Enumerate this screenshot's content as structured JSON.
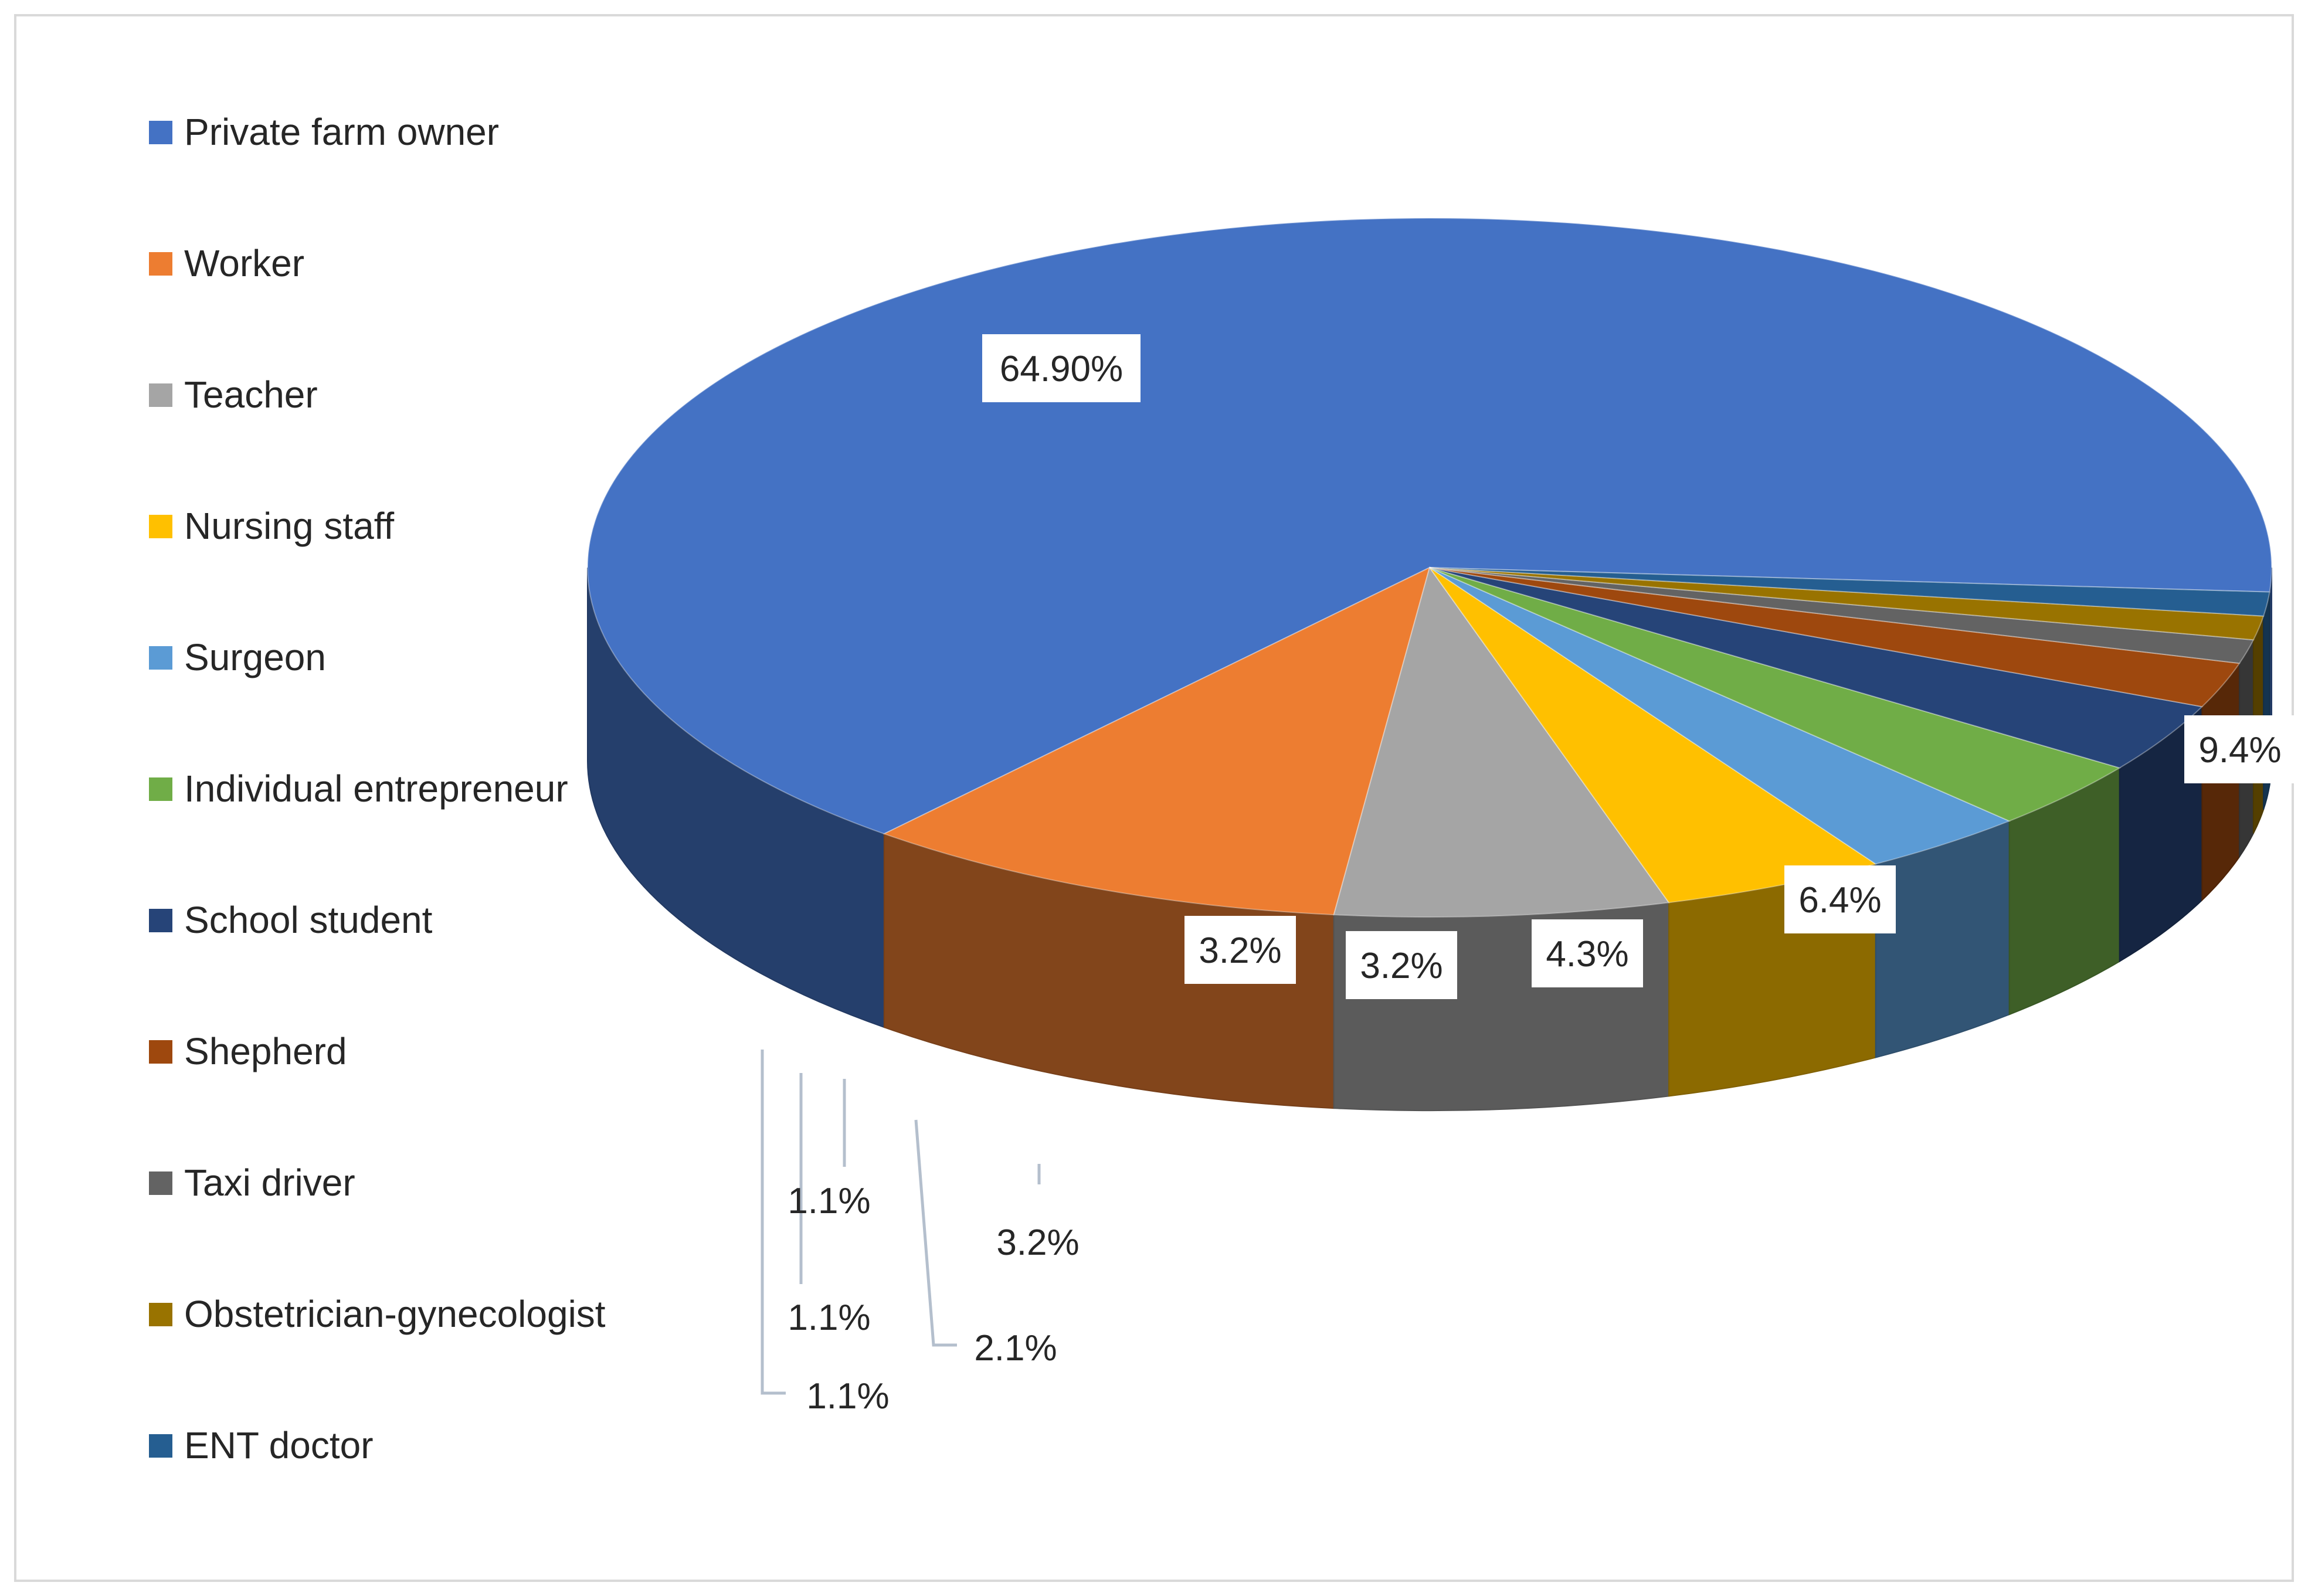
{
  "chart_data": {
    "type": "pie",
    "three_d": true,
    "legend_position": "left",
    "slices": [
      {
        "name": "Private farm owner",
        "label": "64.90%",
        "value": 64.9,
        "color": "#4472C4"
      },
      {
        "name": "Worker",
        "label": "9.4%",
        "value": 9.4,
        "color": "#ED7D31"
      },
      {
        "name": "Teacher",
        "label": "6.4%",
        "value": 6.4,
        "color": "#A5A5A5"
      },
      {
        "name": "Nursing staff",
        "label": "4.3%",
        "value": 4.3,
        "color": "#FFC000"
      },
      {
        "name": "Surgeon",
        "label": "3.2%",
        "value": 3.2,
        "color": "#5B9BD5"
      },
      {
        "name": "Individual entrepreneur",
        "label": "3.2%",
        "value": 3.2,
        "color": "#70AD47"
      },
      {
        "name": "School student",
        "label": "3.2%",
        "value": 3.2,
        "color": "#264478"
      },
      {
        "name": "Shepherd",
        "label": "2.1%",
        "value": 2.1,
        "color": "#9E480E"
      },
      {
        "name": "Taxi driver",
        "label": "1.1%",
        "value": 1.1,
        "color": "#636363"
      },
      {
        "name": "Obstetrician-gynecologist",
        "label": "1.1%",
        "value": 1.1,
        "color": "#997300"
      },
      {
        "name": "ENT doctor",
        "label": "1.1%",
        "value": 1.1,
        "color": "#255E91"
      }
    ]
  }
}
